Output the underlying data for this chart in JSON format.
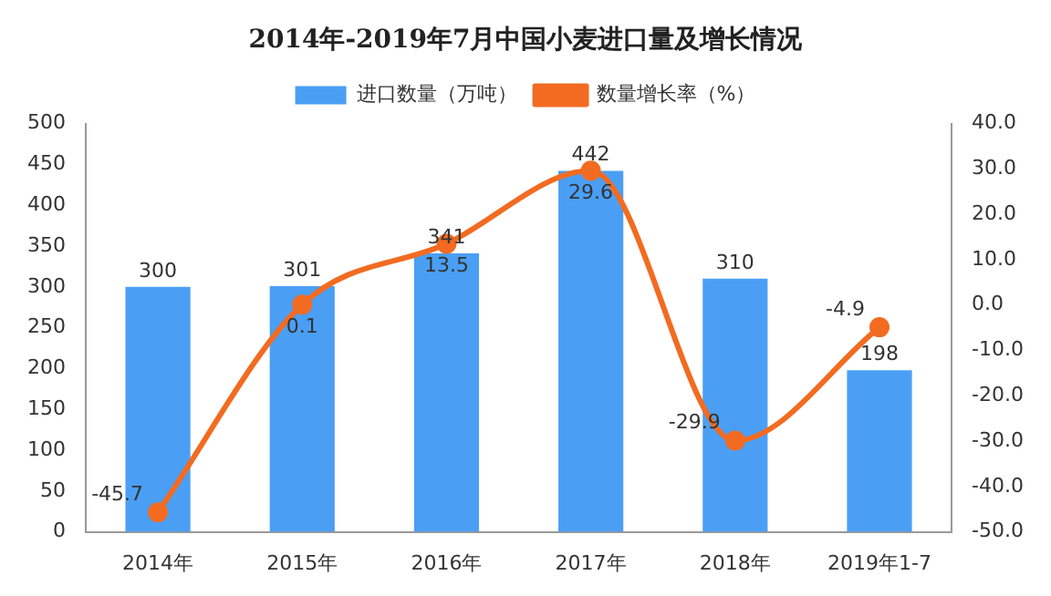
{
  "chart_data": {
    "type": "bar",
    "title": "2014年-2019年7月中国小麦进口量及增长情况",
    "categories": [
      "2014年",
      "2015年",
      "2016年",
      "2017年",
      "2018年",
      "2019年1-7"
    ],
    "series": [
      {
        "name": "进口数量（万吨）",
        "color": "#4a9ff5",
        "values": [
          300,
          301,
          341,
          442,
          310,
          198
        ]
      },
      {
        "name": "数量增长率（%）",
        "type": "line",
        "axis": "y2",
        "color": "#f26b21",
        "marker": "circle",
        "values": [
          -45.7,
          0.1,
          13.5,
          29.6,
          -29.9,
          -4.9
        ]
      }
    ],
    "ylim": [
      0,
      500
    ],
    "yticks": [
      0,
      50,
      100,
      150,
      200,
      250,
      300,
      350,
      400,
      450,
      500
    ],
    "y2lim": [
      -50,
      40
    ],
    "y2ticks": [
      {
        "value": -50,
        "label": "-50.0"
      },
      {
        "value": -40,
        "label": "-40.0"
      },
      {
        "value": -30,
        "label": "-30.0"
      },
      {
        "value": -20,
        "label": "-20.0"
      },
      {
        "value": -10,
        "label": "-10.0"
      },
      {
        "value": 0,
        "label": "0.0"
      },
      {
        "value": 10,
        "label": "10.0"
      },
      {
        "value": 20,
        "label": "20.0"
      },
      {
        "value": 30,
        "label": "30.0"
      },
      {
        "value": 40,
        "label": "40.0"
      }
    ],
    "grid": false,
    "legend": "top",
    "data_labels": true
  }
}
